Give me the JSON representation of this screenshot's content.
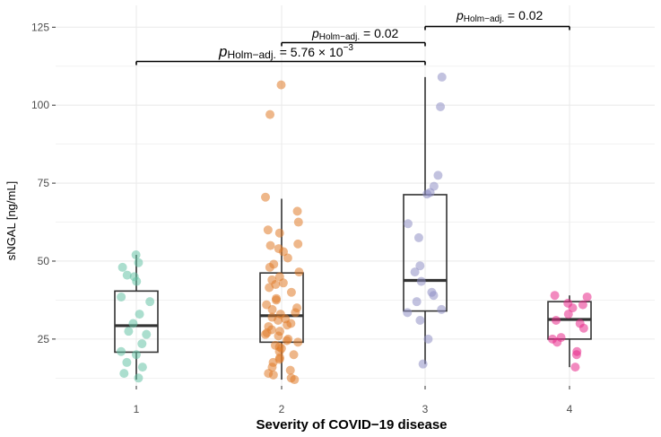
{
  "chart_data": {
    "type": "scatter",
    "subtype": "boxplot-with-jittered-points",
    "xlabel": "Severity of COVID−19 disease",
    "ylabel": "sNGAL [ng/mL]",
    "categories": [
      "1",
      "2",
      "3",
      "4"
    ],
    "ylim": [
      10,
      132
    ],
    "y_ticks": [
      25,
      50,
      75,
      100,
      125
    ],
    "grid": true,
    "legend": "none",
    "colors": {
      "1": "#66c2a5",
      "2": "#e07b2a",
      "3": "#8f8fc4",
      "4": "#e7298a",
      "box": "#333333",
      "grid": "#ebebeb",
      "annotation": "#000000"
    },
    "boxes": [
      {
        "category": "1",
        "q1": 20.8,
        "median": 29.3,
        "q3": 40.4,
        "whisker_low": 12.0,
        "whisker_high": 52.0
      },
      {
        "category": "2",
        "q1": 24.0,
        "median": 32.5,
        "q3": 46.2,
        "whisker_low": 12.0,
        "whisker_high": 70.0
      },
      {
        "category": "3",
        "q1": 34.0,
        "median": 43.8,
        "q3": 71.3,
        "whisker_low": 17.0,
        "whisker_high": 109.0
      },
      {
        "category": "4",
        "q1": 25.0,
        "median": 31.3,
        "q3": 37.0,
        "whisker_low": 16.0,
        "whisker_high": 39.0
      }
    ],
    "points": {
      "1": [
        52,
        49.5,
        48,
        45.5,
        45,
        43.5,
        38.5,
        37,
        33,
        30,
        27.5,
        26.5,
        23.5,
        21,
        20,
        17.5,
        16,
        14,
        12.5
      ],
      "2": [
        106.5,
        97,
        70.5,
        66,
        62.5,
        60,
        59,
        55.5,
        55,
        54,
        53,
        51,
        49,
        48,
        46.5,
        45,
        44,
        43,
        42.5,
        41.5,
        40,
        38,
        37.5,
        36,
        35,
        34.5,
        33.5,
        33,
        32,
        31.5,
        31,
        30,
        29.5,
        29,
        28,
        27.5,
        27,
        26.5,
        26,
        25,
        24.5,
        24,
        23,
        22.5,
        22,
        21,
        20,
        19,
        18.5,
        17.5,
        16,
        15,
        14,
        13.5,
        12.5,
        12
      ],
      "3": [
        109,
        99.5,
        77.5,
        74,
        72,
        71.5,
        62,
        57.5,
        48.5,
        46.5,
        43.5,
        40,
        39,
        37,
        34.5,
        33.5,
        31,
        25,
        17
      ],
      "4": [
        39,
        38.5,
        36.5,
        36,
        35,
        33,
        31,
        30,
        28.5,
        25.5,
        25,
        24,
        21,
        20,
        16
      ]
    },
    "annotations": [
      {
        "from": "1",
        "to": "3",
        "label_p": "p",
        "label_sub": "Holm−adj.",
        "label_value": "= 5.76 × 10",
        "label_exp": "−3"
      },
      {
        "from": "2",
        "to": "3",
        "label_p": "p",
        "label_sub": "Holm−adj.",
        "label_value": "= 0.02",
        "label_exp": ""
      },
      {
        "from": "3",
        "to": "4",
        "label_p": "p",
        "label_sub": "Holm−adj.",
        "label_value": "= 0.02",
        "label_exp": ""
      }
    ]
  }
}
